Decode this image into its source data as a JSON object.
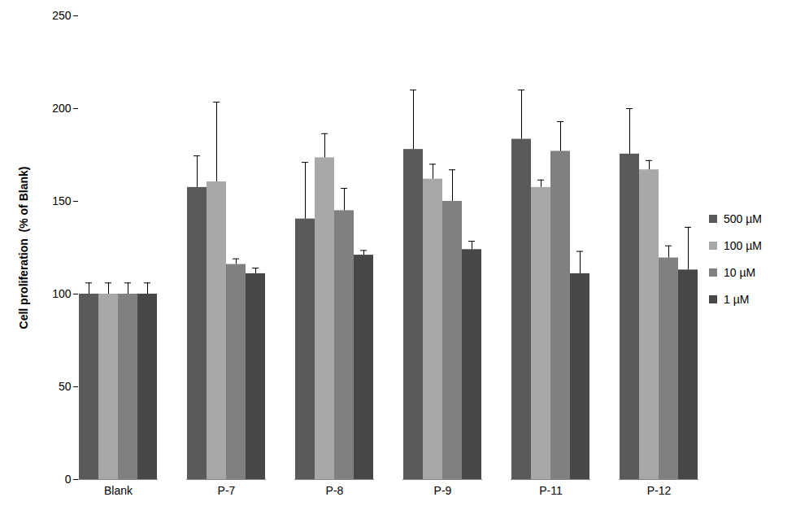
{
  "chart_data": {
    "type": "bar",
    "y_label": "Cell proliferation  (% of Blank)",
    "categories": [
      "Blank",
      "P-7",
      "P-8",
      "P-9",
      "P-11",
      "P-12"
    ],
    "series": [
      {
        "name": "500 µM",
        "color": "#5a5a5a",
        "values": [
          100,
          157.5,
          140.5,
          178,
          183.5,
          175.5
        ],
        "errors": [
          6,
          17,
          30.5,
          32,
          26.5,
          24.5
        ]
      },
      {
        "name": "100 µM",
        "color": "#a8a8a8",
        "values": [
          100,
          160.5,
          173.5,
          162,
          157.5,
          167
        ],
        "errors": [
          6,
          43,
          13,
          8,
          4,
          5
        ]
      },
      {
        "name": "10 µM",
        "color": "#808080",
        "values": [
          100,
          116,
          145,
          150,
          177,
          119.5
        ],
        "errors": [
          6,
          3,
          12,
          17,
          16,
          6.5
        ]
      },
      {
        "name": "1 µM",
        "color": "#474747",
        "values": [
          100,
          111,
          121,
          124,
          111,
          113
        ],
        "errors": [
          6,
          3,
          2.5,
          4.5,
          12,
          23
        ]
      }
    ],
    "ylim": [
      0,
      250
    ],
    "yticks": [
      0,
      50,
      100,
      150,
      200,
      250
    ],
    "grid": false,
    "legend": "right"
  }
}
